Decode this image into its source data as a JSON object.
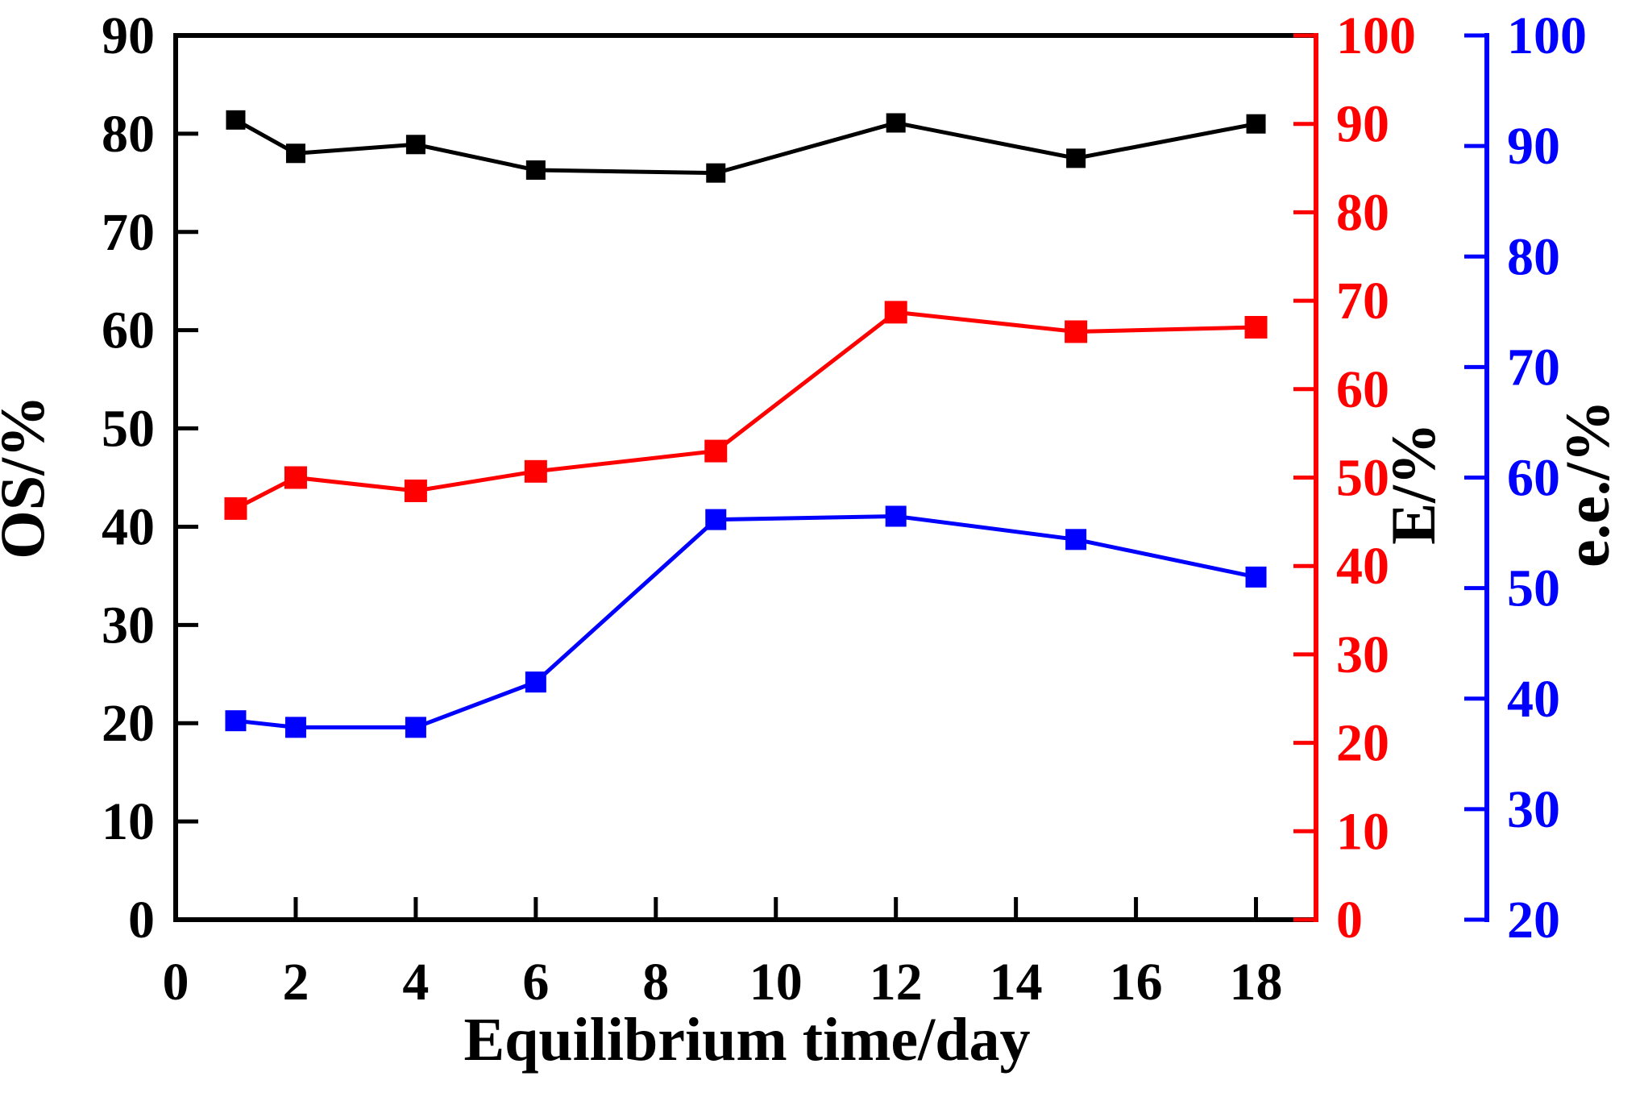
{
  "chart_data": {
    "type": "line",
    "x": [
      1,
      2,
      4,
      6,
      9,
      12,
      15,
      18
    ],
    "x_axis": {
      "label": "Equilibrium time/day",
      "min": 0,
      "max": 19,
      "ticks": [
        0,
        2,
        4,
        6,
        8,
        10,
        12,
        14,
        16,
        18
      ],
      "color": "#000000"
    },
    "axes": {
      "left": {
        "label": "OS/%",
        "min": 0,
        "max": 90,
        "ticks": [
          0,
          10,
          20,
          30,
          40,
          50,
          60,
          70,
          80,
          90
        ],
        "line_color": "#000000",
        "tick_label_color": "#000000",
        "title_color": "#000000"
      },
      "right_inner": {
        "label": "E/%",
        "min": 0,
        "max": 100,
        "ticks": [
          0,
          10,
          20,
          30,
          40,
          50,
          60,
          70,
          80,
          90,
          100
        ],
        "line_color": "#ff0000",
        "tick_label_color": "#ff0000",
        "title_color": "#000000"
      },
      "right_outer": {
        "label": "e.e./%",
        "min": 20,
        "max": 100,
        "ticks": [
          20,
          30,
          40,
          50,
          60,
          70,
          80,
          90,
          100
        ],
        "line_color": "#0000ff",
        "tick_label_color": "#0000ff",
        "title_color": "#000000"
      }
    },
    "series": [
      {
        "name": "OS",
        "axis": "left",
        "color": "#000000",
        "marker": "square",
        "values": [
          81.4,
          78.0,
          78.9,
          76.3,
          76.0,
          81.1,
          77.5,
          81.0
        ]
      },
      {
        "name": "E",
        "axis": "right_inner",
        "color": "#ff0000",
        "marker": "square",
        "values": [
          46.5,
          50.0,
          48.5,
          50.7,
          53.0,
          68.7,
          66.5,
          67.0
        ]
      },
      {
        "name": "e.e.",
        "axis": "right_outer",
        "color": "#0000ff",
        "marker": "square",
        "values": [
          38.0,
          37.4,
          37.4,
          41.5,
          56.2,
          56.5,
          54.4,
          51.0
        ]
      }
    ],
    "grid": false,
    "legend": "none"
  }
}
